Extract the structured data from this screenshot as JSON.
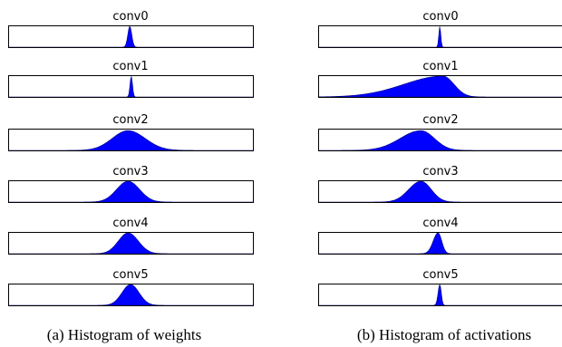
{
  "figure": {
    "background": "#ffffff",
    "fill_color": "#0000ff",
    "stroke_color": "#000000",
    "panels": [
      {
        "caption": "(a) Histogram of weights",
        "rows": [
          {
            "label": "conv0",
            "center": 0.497,
            "sigma_left": 0.008,
            "sigma_right": 0.008,
            "height": 1.0
          },
          {
            "label": "conv1",
            "center": 0.503,
            "sigma_left": 0.005,
            "sigma_right": 0.005,
            "height": 1.0
          },
          {
            "label": "conv2",
            "center": 0.49,
            "sigma_left": 0.065,
            "sigma_right": 0.07,
            "height": 0.95
          },
          {
            "label": "conv3",
            "center": 0.49,
            "sigma_left": 0.047,
            "sigma_right": 0.047,
            "height": 1.0
          },
          {
            "label": "conv4",
            "center": 0.49,
            "sigma_left": 0.04,
            "sigma_right": 0.042,
            "height": 1.0
          },
          {
            "label": "conv5",
            "center": 0.5,
            "sigma_left": 0.035,
            "sigma_right": 0.035,
            "height": 1.0
          }
        ]
      },
      {
        "caption": "(b) Histogram of activations",
        "rows": [
          {
            "label": "conv0",
            "center": 0.497,
            "sigma_left": 0.004,
            "sigma_right": 0.004,
            "height": 1.0
          },
          {
            "label": "conv1",
            "center": 0.51,
            "sigma_left": 0.16,
            "sigma_right": 0.045,
            "height": 1.0
          },
          {
            "label": "conv2",
            "center": 0.42,
            "sigma_left": 0.085,
            "sigma_right": 0.055,
            "height": 0.95
          },
          {
            "label": "conv3",
            "center": 0.42,
            "sigma_left": 0.05,
            "sigma_right": 0.042,
            "height": 1.0
          },
          {
            "label": "conv4",
            "center": 0.49,
            "sigma_left": 0.02,
            "sigma_right": 0.015,
            "height": 1.0
          },
          {
            "label": "conv5",
            "center": 0.497,
            "sigma_left": 0.007,
            "sigma_right": 0.006,
            "height": 1.0
          }
        ]
      }
    ]
  },
  "chart_data": [
    {
      "type": "area",
      "title": "(a) Histogram of weights",
      "series": [
        {
          "name": "conv0",
          "shape": "narrow peak, center"
        },
        {
          "name": "conv1",
          "shape": "very narrow peak, center"
        },
        {
          "name": "conv2",
          "shape": "wide bell, center"
        },
        {
          "name": "conv3",
          "shape": "medium bell, center"
        },
        {
          "name": "conv4",
          "shape": "medium bell, center"
        },
        {
          "name": "conv5",
          "shape": "medium-narrow bell, center"
        }
      ],
      "xticks": [],
      "yticks": [],
      "grid": false
    },
    {
      "type": "area",
      "title": "(b) Histogram of activations",
      "series": [
        {
          "name": "conv0",
          "shape": "very narrow peak, center"
        },
        {
          "name": "conv1",
          "shape": "very wide, left-skewed, peak right of center"
        },
        {
          "name": "conv2",
          "shape": "wide bell, left of center"
        },
        {
          "name": "conv3",
          "shape": "medium bell, left of center"
        },
        {
          "name": "conv4",
          "shape": "narrow peak, center"
        },
        {
          "name": "conv5",
          "shape": "very narrow peak, center"
        }
      ],
      "xticks": [],
      "yticks": [],
      "grid": false
    }
  ]
}
